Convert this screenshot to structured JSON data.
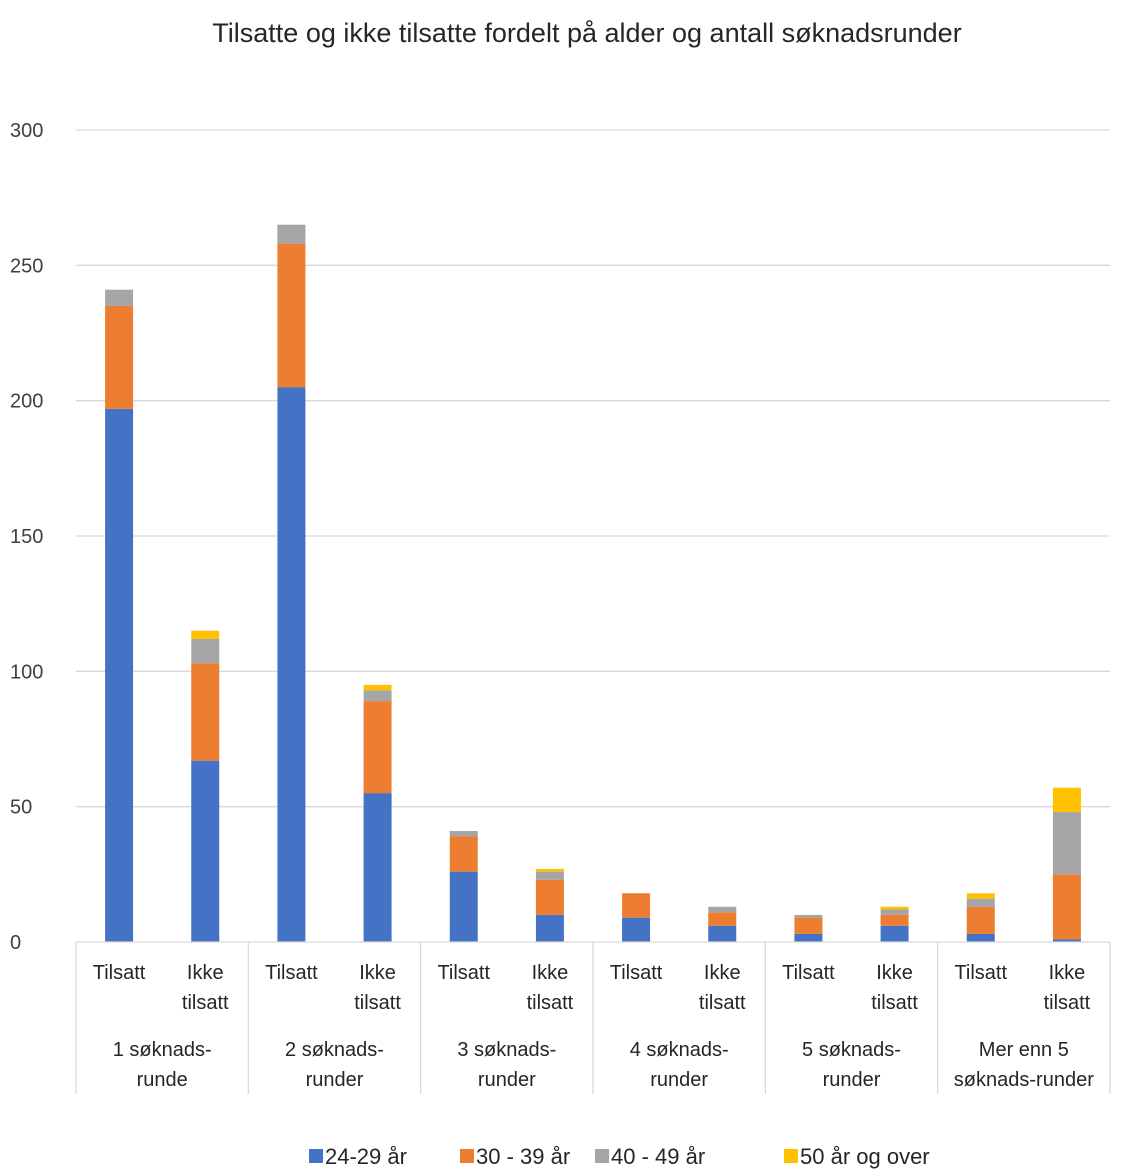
{
  "chart_data": {
    "type": "bar",
    "stacked": true,
    "title": "Tilsatte og ikke tilsatte fordelt på alder og antall søknadsrunder",
    "xlabel": "",
    "ylabel": "",
    "ylim": [
      0,
      300
    ],
    "yticks": [
      0,
      50,
      100,
      150,
      200,
      250,
      300
    ],
    "grid": true,
    "legend_position": "bottom",
    "groups": [
      {
        "lines": [
          "1 søknads-",
          "runde"
        ]
      },
      {
        "lines": [
          "2 søknads-",
          "runder"
        ]
      },
      {
        "lines": [
          "3 søknads-",
          "runder"
        ]
      },
      {
        "lines": [
          "4 søknads-",
          "runder"
        ]
      },
      {
        "lines": [
          "5 søknads-",
          "runder"
        ]
      },
      {
        "lines": [
          "Mer enn 5",
          "søknads-runder"
        ]
      }
    ],
    "categories": [
      {
        "group": 0,
        "lines": [
          "Tilsatt"
        ]
      },
      {
        "group": 0,
        "lines": [
          "Ikke",
          "tilsatt"
        ]
      },
      {
        "group": 1,
        "lines": [
          "Tilsatt"
        ]
      },
      {
        "group": 1,
        "lines": [
          "Ikke",
          "tilsatt"
        ]
      },
      {
        "group": 2,
        "lines": [
          "Tilsatt"
        ]
      },
      {
        "group": 2,
        "lines": [
          "Ikke",
          "tilsatt"
        ]
      },
      {
        "group": 3,
        "lines": [
          "Tilsatt"
        ]
      },
      {
        "group": 3,
        "lines": [
          "Ikke",
          "tilsatt"
        ]
      },
      {
        "group": 4,
        "lines": [
          "Tilsatt"
        ]
      },
      {
        "group": 4,
        "lines": [
          "Ikke",
          "tilsatt"
        ]
      },
      {
        "group": 5,
        "lines": [
          "Tilsatt"
        ]
      },
      {
        "group": 5,
        "lines": [
          "Ikke",
          "tilsatt"
        ]
      }
    ],
    "series": [
      {
        "name": "24-29 år",
        "color": "#4472c4",
        "values": [
          197,
          67,
          205,
          55,
          26,
          10,
          9,
          6,
          3,
          6,
          3,
          1
        ]
      },
      {
        "name": "30 - 39 år",
        "color": "#ed7d31",
        "values": [
          38,
          36,
          53,
          34,
          13,
          13,
          9,
          5,
          6,
          4,
          10,
          24
        ]
      },
      {
        "name": "40 - 49 år",
        "color": "#a5a5a5",
        "values": [
          6,
          9,
          7,
          4,
          2,
          3,
          0,
          2,
          1,
          2,
          3,
          23
        ]
      },
      {
        "name": "50 år og over",
        "color": "#ffc000",
        "values": [
          0,
          3,
          0,
          2,
          0,
          1,
          0,
          0,
          0,
          1,
          2,
          9
        ]
      }
    ]
  }
}
